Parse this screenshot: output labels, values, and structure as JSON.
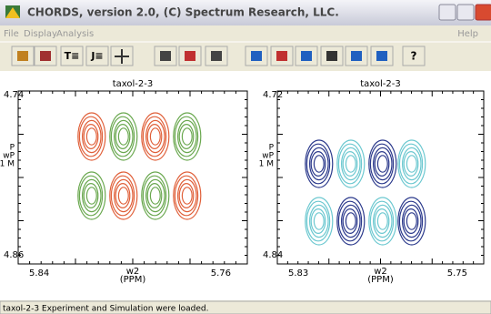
{
  "window": {
    "title": "CHORDS, version 2.0, (C) Spectrum Research, LLC."
  },
  "menu": {
    "items": [
      "File",
      "Display",
      "Analysis"
    ],
    "help": "Help"
  },
  "toolbar": {
    "labels": [
      "T≡",
      "J≡",
      "?"
    ]
  },
  "panels": [
    {
      "title": "taxol-2-3",
      "y_top": "4.74",
      "y_bottom": "4.86",
      "x_left": "5.84",
      "x_right": "5.76",
      "x_label": [
        "w2",
        "(PPM)"
      ],
      "y_label": [
        "P",
        "wP",
        "1 M"
      ]
    },
    {
      "title": "taxol-2-3",
      "y_top": "4.72",
      "y_bottom": "4.84",
      "x_left": "5.83",
      "x_right": "5.75",
      "x_label": [
        "w2",
        "(PPM)"
      ],
      "y_label": [
        "P",
        "wP",
        "1 M"
      ]
    }
  ],
  "status": "taxol-2-3 Experiment and Simulation were loaded."
}
